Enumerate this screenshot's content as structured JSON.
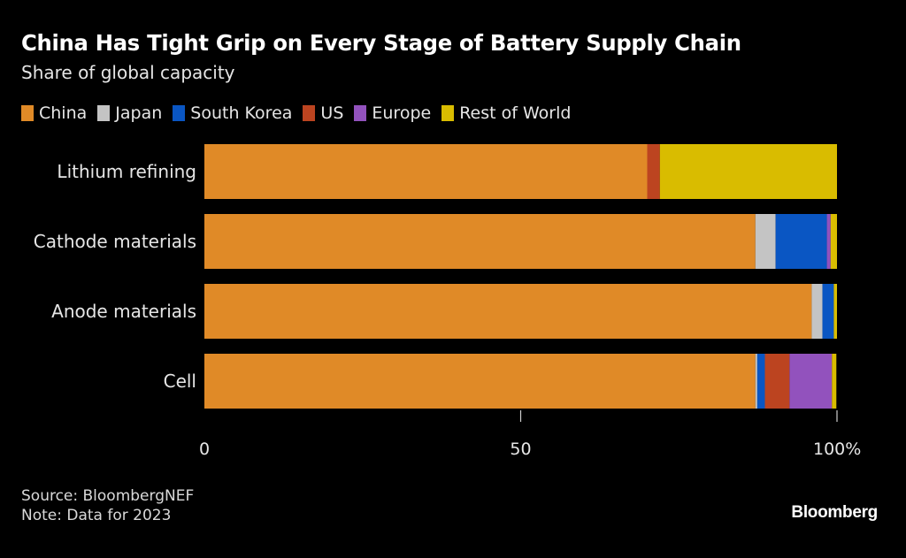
{
  "chart_data": {
    "type": "bar",
    "orientation": "horizontal",
    "stacked": true,
    "title": "China Has Tight Grip on Every Stage of Battery Supply Chain",
    "subtitle": "Share of global capacity",
    "xlabel": "",
    "ylabel": "",
    "xlim": [
      0,
      100
    ],
    "x_ticks": [
      "0",
      "50",
      "100%"
    ],
    "x_tick_values": [
      0,
      50,
      100
    ],
    "grid": false,
    "legend_position": "top-left",
    "categories": [
      "Lithium refining",
      "Cathode materials",
      "Anode materials",
      "Cell"
    ],
    "series": [
      {
        "name": "China",
        "color": "#E08A27",
        "values": [
          70.0,
          87.1,
          96.0,
          87.1
        ]
      },
      {
        "name": "Japan",
        "color": "#C4C4C4",
        "values": [
          0,
          3.2,
          1.7,
          0.3
        ]
      },
      {
        "name": "South Korea",
        "color": "#0A56C3",
        "values": [
          0,
          8.1,
          1.8,
          1.2
        ]
      },
      {
        "name": "US",
        "color": "#BC4420",
        "values": [
          2.0,
          0,
          0,
          3.9
        ]
      },
      {
        "name": "Europe",
        "color": "#9252BD",
        "values": [
          0,
          0.6,
          0,
          6.7
        ]
      },
      {
        "name": "Rest of World",
        "color": "#D9BC00",
        "values": [
          28.0,
          1.0,
          0.5,
          0.7
        ]
      }
    ],
    "footnotes": [
      "Source: BloombergNEF",
      "Note: Data for 2023"
    ]
  },
  "header": {
    "title": "China Has Tight Grip on Every Stage of Battery Supply Chain",
    "subtitle": "Share of global capacity"
  },
  "footer": {
    "source": "Source: BloombergNEF",
    "note": "Note: Data for 2023",
    "brand": "Bloomberg"
  }
}
